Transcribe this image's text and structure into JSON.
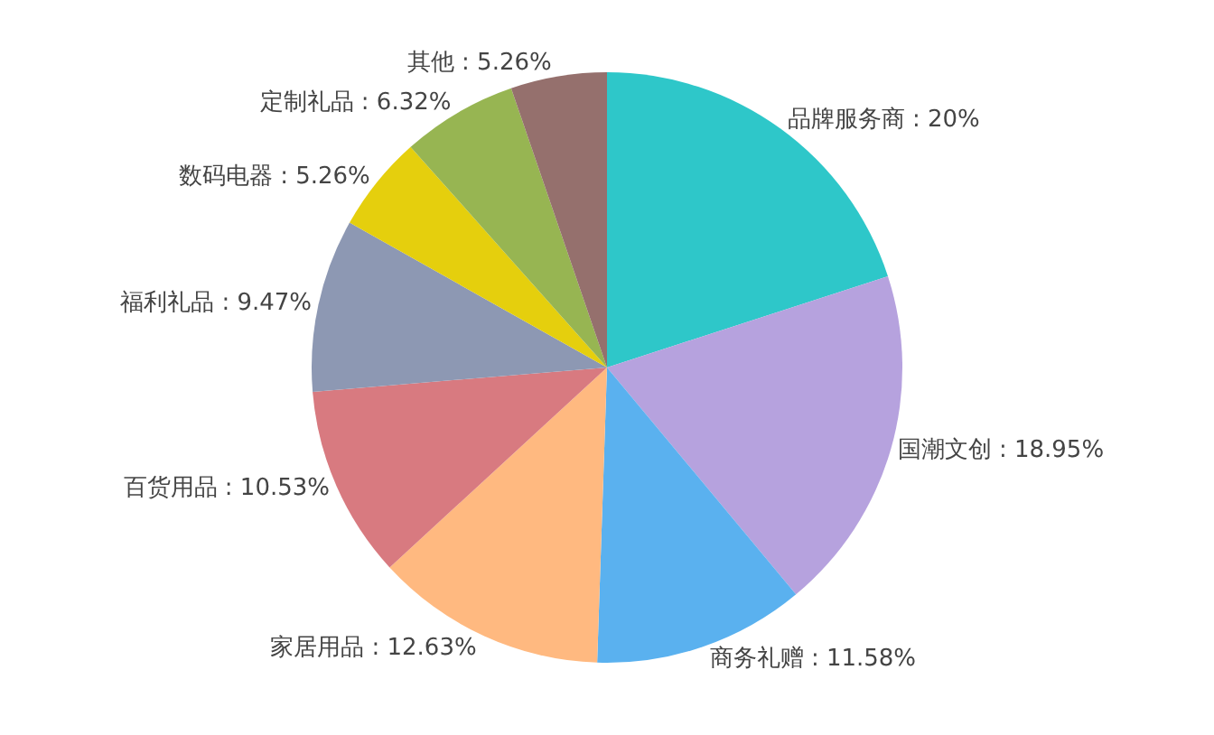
{
  "chart_data": {
    "type": "pie",
    "categories": [
      "品牌服务商",
      "国潮文创",
      "商务礼赠",
      "家居用品",
      "百货用品",
      "福利礼品",
      "数码电器",
      "定制礼品",
      "其他"
    ],
    "values": [
      20,
      18.95,
      11.58,
      12.63,
      10.53,
      9.47,
      5.26,
      6.32,
      5.26
    ],
    "value_labels": [
      "20%",
      "18.95%",
      "11.58%",
      "12.63%",
      "10.53%",
      "9.47%",
      "5.26%",
      "6.32%",
      "5.26%"
    ],
    "colors": [
      "#2ec7c9",
      "#b6a2de",
      "#5ab1ef",
      "#ffb980",
      "#d87a80",
      "#8d98b3",
      "#e5cf0d",
      "#97b552",
      "#95706d"
    ],
    "legend": false
  }
}
